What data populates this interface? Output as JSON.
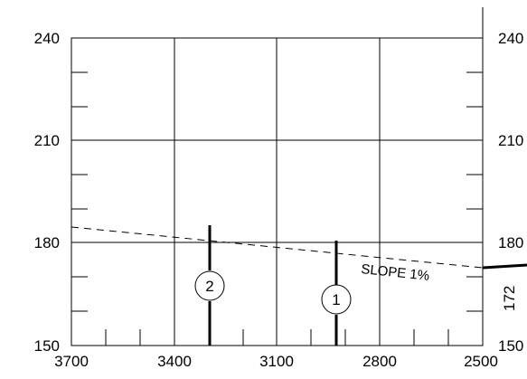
{
  "chart_data": {
    "type": "line",
    "xlim": [
      3700,
      2500
    ],
    "ylim": [
      150,
      240
    ],
    "x_ticks": [
      "3700",
      "3400",
      "3100",
      "2800",
      "2500"
    ],
    "y_ticks_left": [
      "240",
      "210",
      "180",
      "150"
    ],
    "y_ticks_right": [
      "240",
      "210",
      "180",
      "150"
    ],
    "slope_line": {
      "x": [
        3700,
        2500
      ],
      "y": [
        184,
        172
      ],
      "label": "SLOPE 1%",
      "end_value_label": "172"
    },
    "markers": [
      {
        "label": "2",
        "x": 3330,
        "y_top": 184.5,
        "y_bottom": 150
      },
      {
        "label": "1",
        "x": 2960,
        "y_top": 180.5,
        "y_bottom": 150
      }
    ]
  }
}
